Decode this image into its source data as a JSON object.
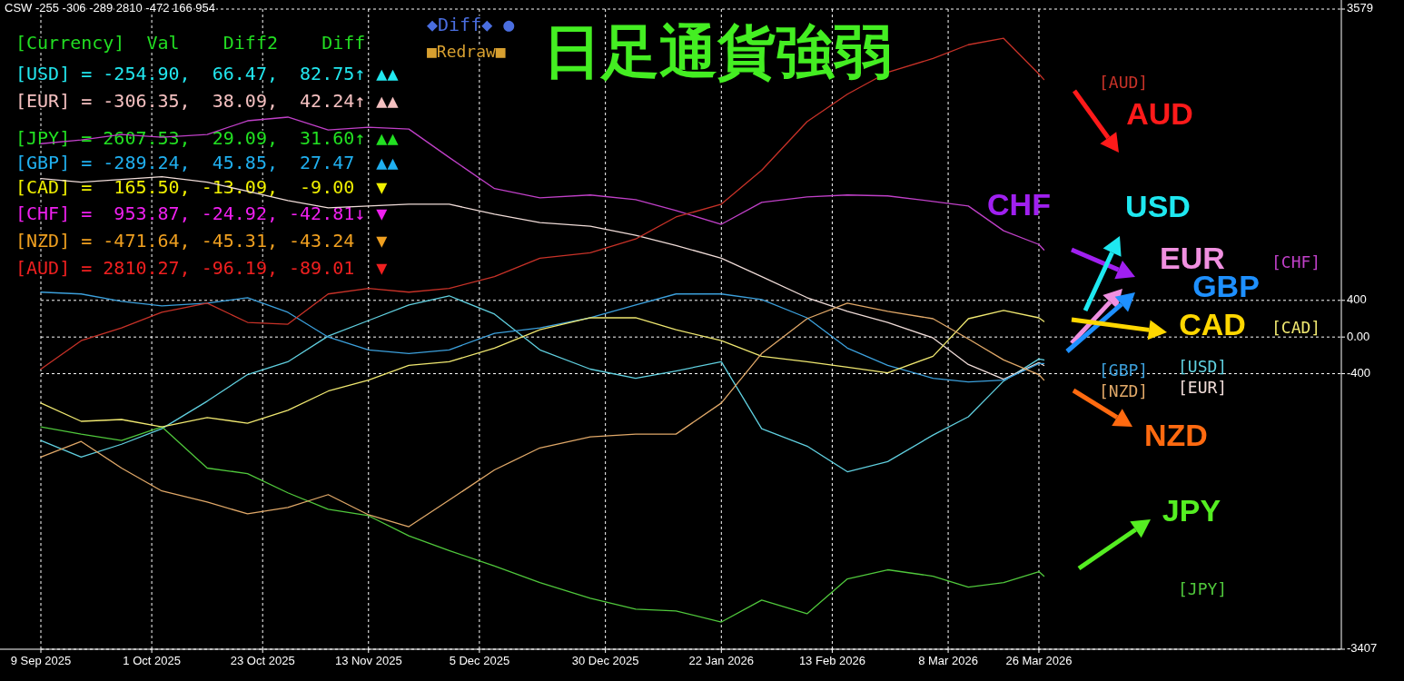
{
  "chart_data": {
    "type": "line",
    "title": "日足通貨強弱",
    "annotations": [
      "CSW -255 -306 -289 2810 -472 166 954",
      "◆Diff◆ ●",
      "■Redraw■",
      "[Currency]  Val    Diff2    Diff",
      "[USD] = -254.90,  66.47,  82.75↑ ▲▲",
      "[EUR] = -306.35,  38.09,  42.24↑ ▲▲",
      "[JPY] = 2607.53,  29.09,  31.60↑ ▲▲",
      "[GBP] = -289.24,  45.85,  27.47  ▲▲",
      "[CAD] =  165.50, -13.09,  -9.00  ▼",
      "[CHF] =  953.87, -24.92, -42.81↓ ▼",
      "[NZD] = -471.64, -45.31, -43.24  ▼",
      "[AUD] = 2810.27, -96.19, -89.01  ▼",
      "AUD",
      "CHF",
      "USD",
      "EUR",
      "GBP",
      "CAD",
      "NZD",
      "JPY"
    ],
    "x": [
      "2025-09-09",
      "2025-09-17",
      "2025-09-25",
      "2025-10-03",
      "2025-10-12",
      "2025-10-20",
      "2025-10-28",
      "2025-11-05",
      "2025-11-13",
      "2025-11-21",
      "2025-11-29",
      "2025-12-08",
      "2025-12-17",
      "2025-12-27",
      "2026-01-05",
      "2026-01-13",
      "2026-01-22",
      "2026-01-30",
      "2026-02-08",
      "2026-02-16",
      "2026-02-24",
      "2026-03-05",
      "2026-03-12",
      "2026-03-19",
      "2026-03-26",
      "2026-03-27"
    ],
    "xlim": [
      "2025-09-09",
      "2026-05-25"
    ],
    "xticks": [
      {
        "value": "2025-09-09",
        "label": "9 Sep 2025"
      },
      {
        "value": "2025-10-01",
        "label": "1 Oct 2025"
      },
      {
        "value": "2025-10-23",
        "label": "23 Oct 2025"
      },
      {
        "value": "2025-11-13",
        "label": "13 Nov 2025"
      },
      {
        "value": "2025-12-05",
        "label": "5 Dec 2025"
      },
      {
        "value": "2025-12-30",
        "label": "30 Dec 2025"
      },
      {
        "value": "2026-01-22",
        "label": "22 Jan 2026"
      },
      {
        "value": "2026-02-13",
        "label": "13 Feb 2026"
      },
      {
        "value": "2026-03-08",
        "label": "8 Mar 2026"
      },
      {
        "value": "2026-03-26",
        "label": "26 Mar 2026"
      }
    ],
    "ylim": [
      -3407,
      3579
    ],
    "yticks": [
      3579,
      400,
      {
        "value": 0,
        "label": "0.00"
      },
      -400,
      -3407
    ],
    "grid": true,
    "series": [
      {
        "name": "[USD]",
        "color": "#60d0e0",
        "values": [
          -1130,
          -1310,
          -1170,
          -1000,
          -700,
          -410,
          -270,
          10,
          180,
          350,
          450,
          250,
          -140,
          -350,
          -450,
          -370,
          -270,
          -1000,
          -1190,
          -1470,
          -1360,
          -1070,
          -870,
          -480,
          -240,
          -250
        ]
      },
      {
        "name": "[EUR]",
        "color": "#f0dcd8",
        "values": [
          1730,
          1690,
          1720,
          1750,
          1690,
          1590,
          1490,
          1410,
          1430,
          1450,
          1450,
          1340,
          1250,
          1210,
          1110,
          1000,
          860,
          660,
          430,
          280,
          160,
          -10,
          -300,
          -460,
          -280,
          -310
        ]
      },
      {
        "name": "[JPY]",
        "color": "#50c83c",
        "values": [
          -980,
          -1060,
          -1130,
          -980,
          -1430,
          -1490,
          -1700,
          -1880,
          -1950,
          -2170,
          -2330,
          -2500,
          -2680,
          -2850,
          -2970,
          -2990,
          -3110,
          -2870,
          -3020,
          -2640,
          -2540,
          -2610,
          -2730,
          -2680,
          -2560,
          -2610
        ]
      },
      {
        "name": "[GBP]",
        "color": "#3ca0dc",
        "values": [
          490,
          470,
          390,
          340,
          370,
          430,
          270,
          0,
          -140,
          -180,
          -140,
          40,
          100,
          210,
          350,
          470,
          470,
          410,
          210,
          -120,
          -310,
          -450,
          -490,
          -470,
          -290,
          -290
        ]
      },
      {
        "name": "[CAD]",
        "color": "#f0e870",
        "values": [
          -720,
          -920,
          -900,
          -980,
          -880,
          -940,
          -800,
          -590,
          -470,
          -310,
          -270,
          -120,
          80,
          210,
          210,
          80,
          -40,
          -210,
          -270,
          -330,
          -390,
          -210,
          200,
          290,
          210,
          170
        ]
      },
      {
        "name": "[CHF]",
        "color": "#c040c8",
        "values": [
          2110,
          2150,
          2210,
          2180,
          2210,
          2360,
          2400,
          2260,
          2290,
          2270,
          1960,
          1620,
          1520,
          1550,
          1500,
          1380,
          1230,
          1470,
          1530,
          1550,
          1540,
          1480,
          1430,
          1160,
          1010,
          950
        ]
      },
      {
        "name": "[NZD]",
        "color": "#e0a868",
        "values": [
          -1310,
          -1140,
          -1430,
          -1680,
          -1800,
          -1930,
          -1860,
          -1720,
          -1940,
          -2070,
          -1780,
          -1450,
          -1210,
          -1090,
          -1060,
          -1060,
          -720,
          -180,
          200,
          370,
          280,
          200,
          -20,
          -250,
          -410,
          -470
        ]
      },
      {
        "name": "[AUD]",
        "color": "#c83228",
        "values": [
          -350,
          -40,
          100,
          270,
          370,
          160,
          140,
          470,
          530,
          490,
          530,
          660,
          860,
          920,
          1070,
          1310,
          1450,
          1820,
          2350,
          2650,
          2890,
          3040,
          3190,
          3260,
          2870,
          2810
        ]
      }
    ]
  }
}
